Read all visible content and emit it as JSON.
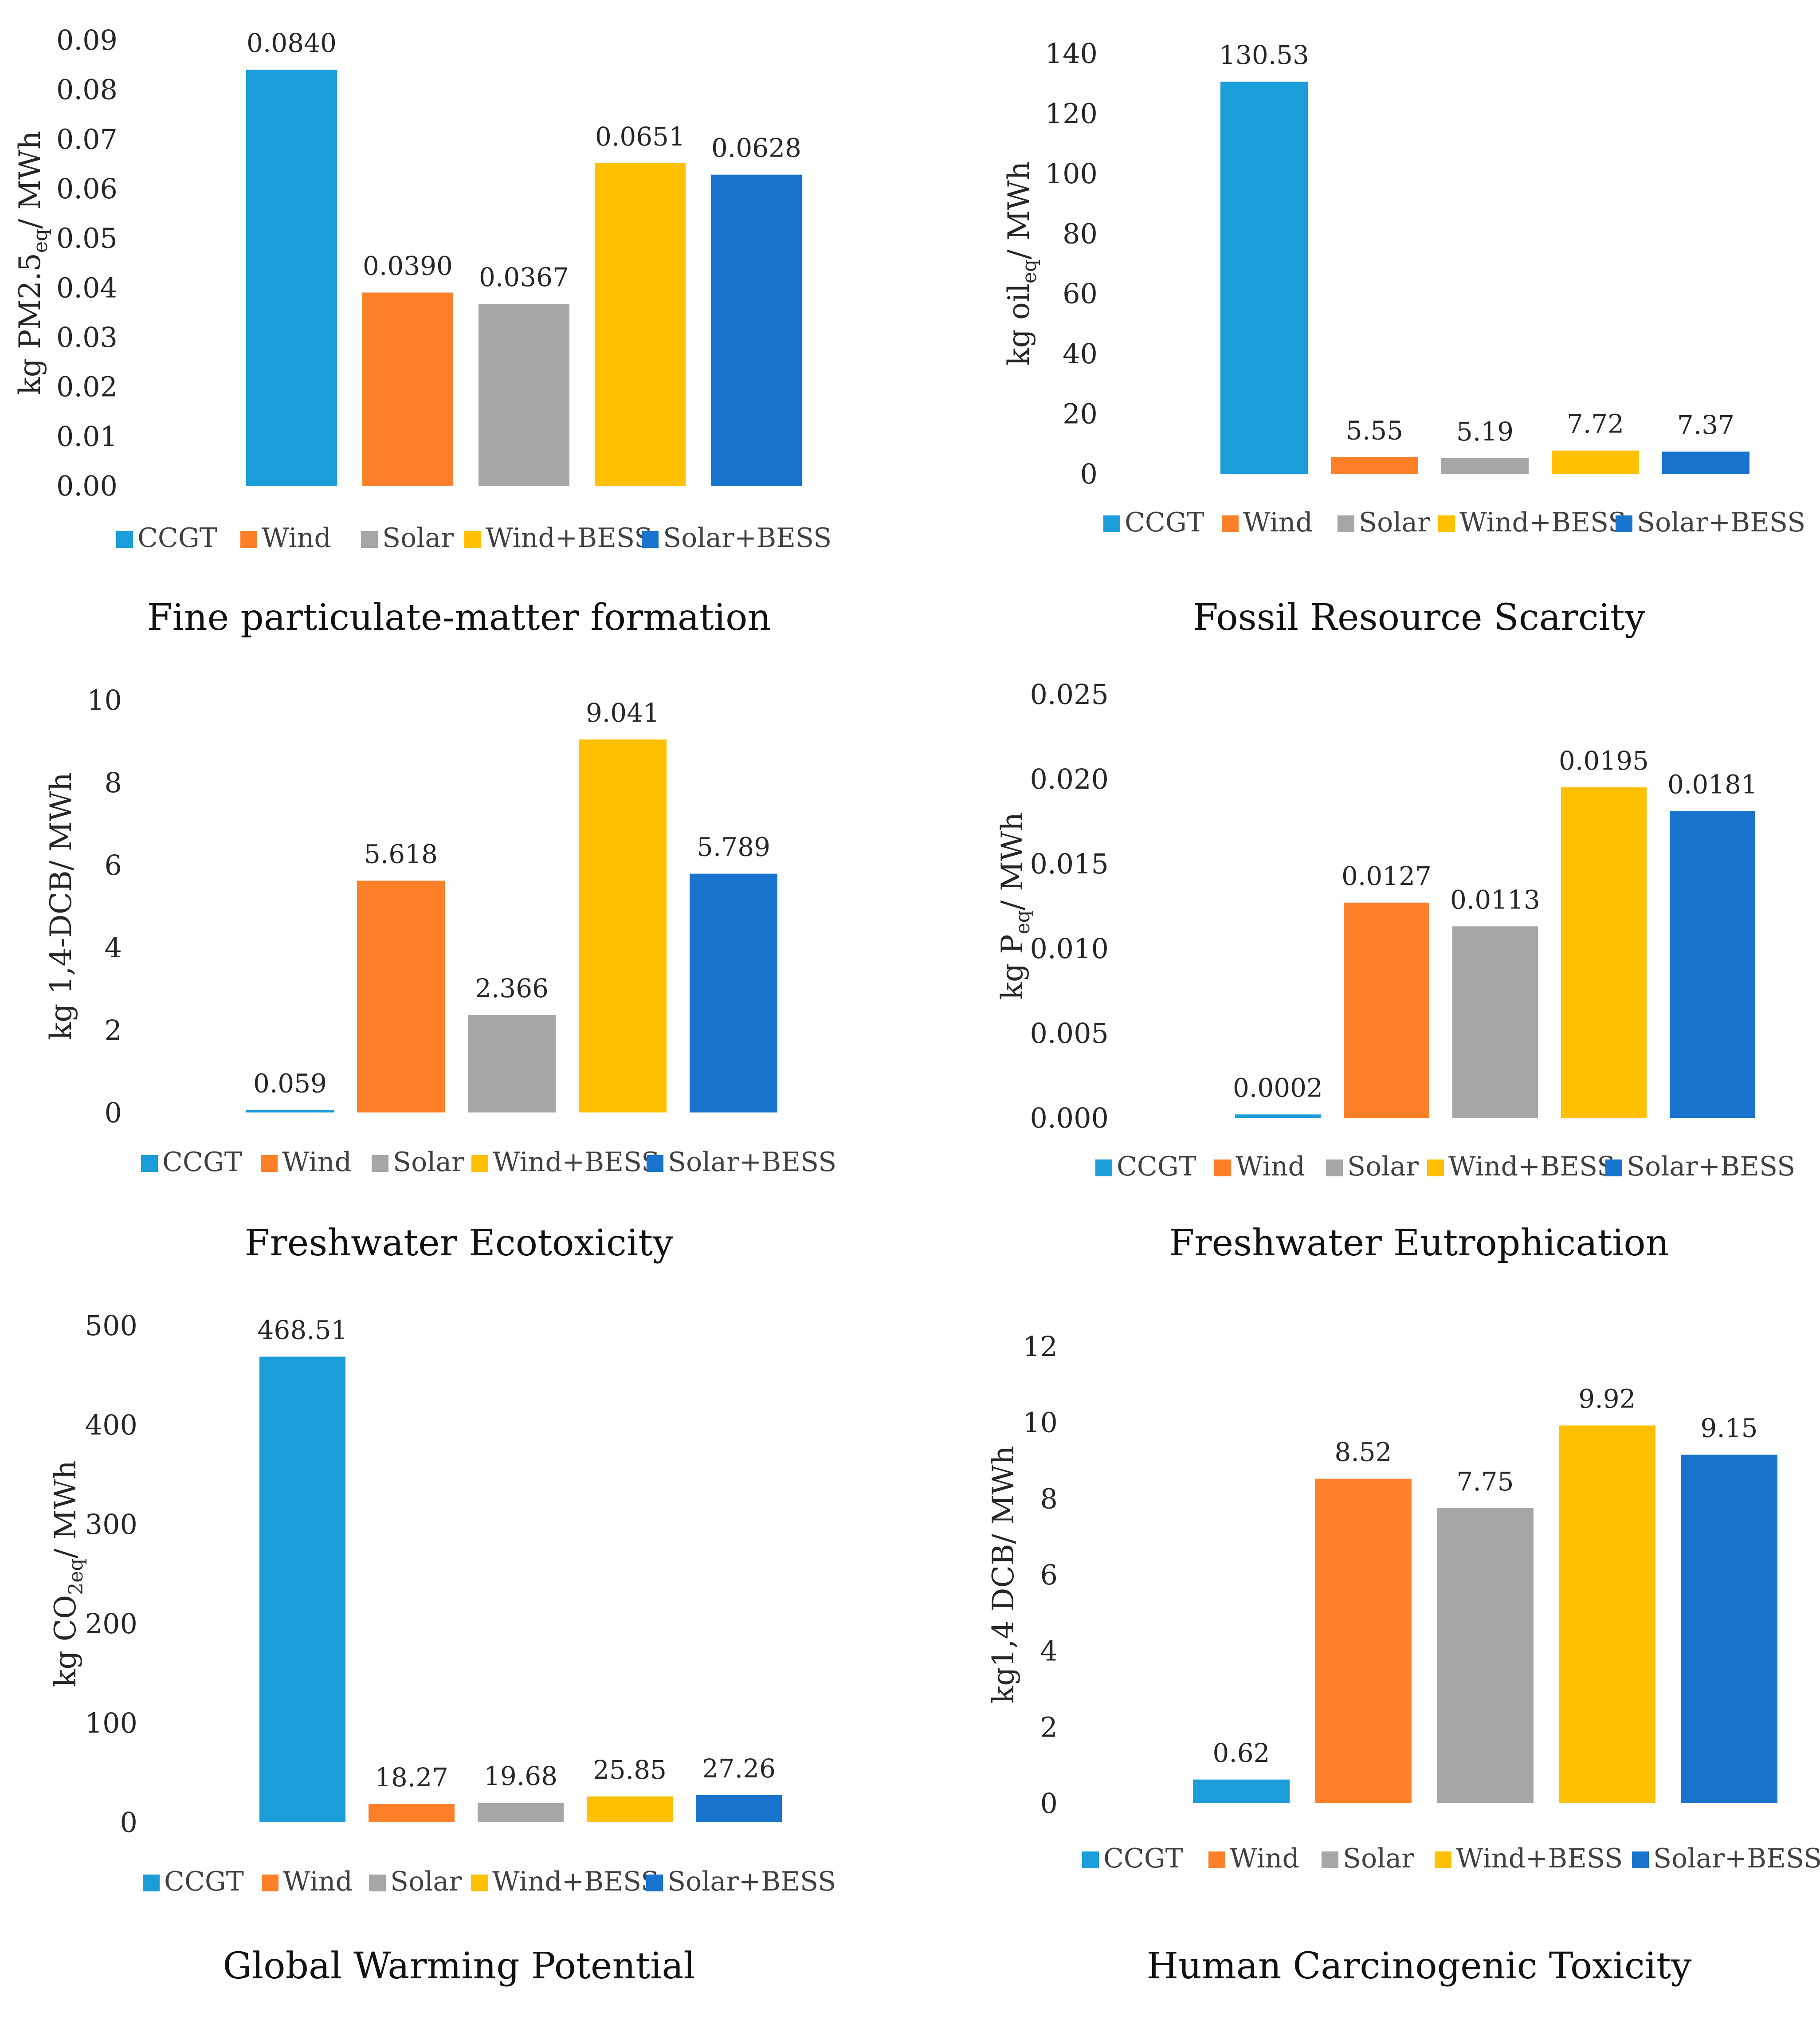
{
  "colors": {
    "CCGT": "#1a9dd9",
    "Wind": "#fd7f28",
    "Solar": "#a6a6a6",
    "Wind+BESS": "#ffc000",
    "Solar+BESS": "#1773cc"
  },
  "chart_data": [
    {
      "type": "bar",
      "title": "Fine particulate-matter formation",
      "ylabel": "kg PM2.5",
      "ylabel_sub": "eq",
      "ylabel_suffix": "/ MWh",
      "categories": [
        "CCGT",
        "Wind",
        "Solar",
        "Wind+BESS",
        "Solar+BESS"
      ],
      "values": [
        0.084,
        0.039,
        0.0367,
        0.0651,
        0.0628
      ],
      "value_labels": [
        "0.0840",
        "0.0390",
        "0.0367",
        "0.0651",
        "0.0628"
      ],
      "ylim": [
        0,
        0.09
      ],
      "yticks": [
        "0.00",
        "0.01",
        "0.02",
        "0.03",
        "0.04",
        "0.05",
        "0.06",
        "0.07",
        "0.08",
        "0.09"
      ],
      "legend": "bottom",
      "grid": false
    },
    {
      "type": "bar",
      "title": "Fossil Resource Scarcity",
      "ylabel": "kg oil",
      "ylabel_sub": "eq",
      "ylabel_suffix": "/ MWh",
      "categories": [
        "CCGT",
        "Wind",
        "Solar",
        "Wind+BESS",
        "Solar+BESS"
      ],
      "values": [
        130.53,
        5.55,
        5.19,
        7.72,
        7.37
      ],
      "value_labels": [
        "130.53",
        "5.55",
        "5.19",
        "7.72",
        "7.37"
      ],
      "ylim": [
        0,
        140
      ],
      "yticks": [
        "0",
        "20",
        "40",
        "60",
        "80",
        "100",
        "120",
        "140"
      ],
      "legend": "bottom",
      "grid": false
    },
    {
      "type": "bar",
      "title": "Freshwater Ecotoxicity",
      "ylabel": "kg 1,4-DCB",
      "ylabel_sub": "",
      "ylabel_suffix": "/ MWh",
      "categories": [
        "CCGT",
        "Wind",
        "Solar",
        "Wind+BESS",
        "Solar+BESS"
      ],
      "values": [
        0.059,
        5.618,
        2.366,
        9.041,
        5.789
      ],
      "value_labels": [
        "0.059",
        "5.618",
        "2.366",
        "9.041",
        "5.789"
      ],
      "ylim": [
        0,
        10
      ],
      "yticks": [
        "0",
        "2",
        "4",
        "6",
        "8",
        "10"
      ],
      "legend": "bottom",
      "grid": false
    },
    {
      "type": "bar",
      "title": "Freshwater Eutrophication",
      "ylabel": "kg P",
      "ylabel_sub": "eq",
      "ylabel_suffix": "/ MWh",
      "categories": [
        "CCGT",
        "Wind",
        "Solar",
        "Wind+BESS",
        "Solar+BESS"
      ],
      "values": [
        0.0002,
        0.0127,
        0.0113,
        0.0195,
        0.0181
      ],
      "value_labels": [
        "0.0002",
        "0.0127",
        "0.0113",
        "0.0195",
        "0.0181"
      ],
      "ylim": [
        0,
        0.025
      ],
      "yticks": [
        "0.000",
        "0.005",
        "0.010",
        "0.015",
        "0.020",
        "0.025"
      ],
      "legend": "bottom",
      "grid": false
    },
    {
      "type": "bar",
      "title": "Global Warming Potential",
      "ylabel": "kg CO",
      "ylabel_sub": "2eq",
      "ylabel_suffix": "/ MWh",
      "categories": [
        "CCGT",
        "Wind",
        "Solar",
        "Wind+BESS",
        "Solar+BESS"
      ],
      "values": [
        468.51,
        18.27,
        19.68,
        25.85,
        27.26
      ],
      "value_labels": [
        "468.51",
        "18.27",
        "19.68",
        "25.85",
        "27.26"
      ],
      "ylim": [
        0,
        500
      ],
      "yticks": [
        "0",
        "100",
        "200",
        "300",
        "400",
        "500"
      ],
      "legend": "bottom",
      "grid": false
    },
    {
      "type": "bar",
      "title": "Human Carcinogenic Toxicity",
      "ylabel": "kg1,4 DCB",
      "ylabel_sub": "",
      "ylabel_suffix": "/ MWh",
      "categories": [
        "CCGT",
        "Wind",
        "Solar",
        "Wind+BESS",
        "Solar+BESS"
      ],
      "values": [
        0.62,
        8.52,
        7.75,
        9.92,
        9.15
      ],
      "value_labels": [
        "0.62",
        "8.52",
        "7.75",
        "9.92",
        "9.15"
      ],
      "ylim": [
        0,
        12
      ],
      "yticks": [
        "0",
        "2",
        "4",
        "6",
        "8",
        "10",
        "12"
      ],
      "legend": "bottom",
      "grid": false
    }
  ]
}
